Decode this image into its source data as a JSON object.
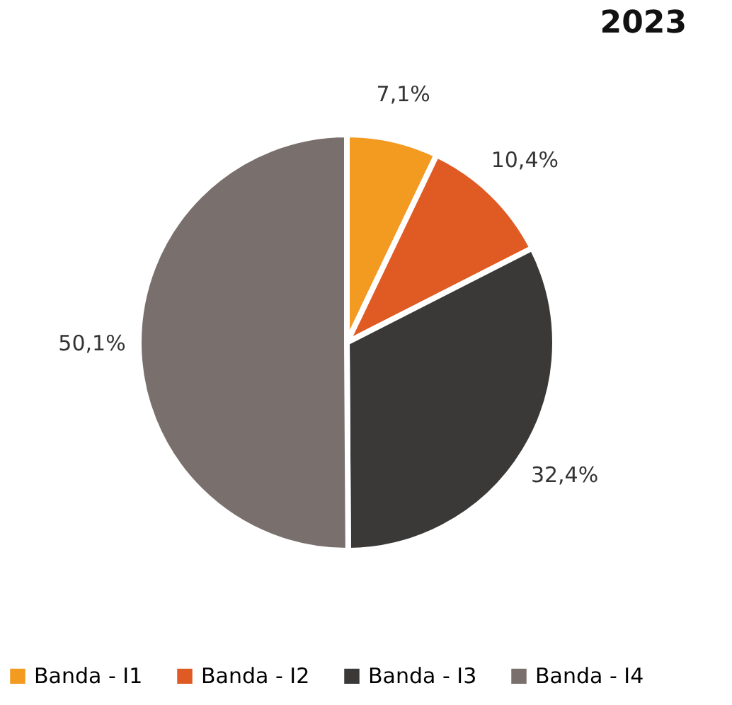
{
  "chart_data": {
    "type": "pie",
    "title": "2023",
    "categories": [
      "Banda - I1",
      "Banda - I2",
      "Banda - I3",
      "Banda - I4"
    ],
    "values": [
      7.1,
      10.4,
      32.4,
      50.1
    ],
    "colors": [
      "#f39a21",
      "#e05a24",
      "#3b3937",
      "#79706e"
    ],
    "value_labels": [
      "7,1%",
      "10,4%",
      "32,4%",
      "50,1%"
    ],
    "legend": "bottom"
  }
}
